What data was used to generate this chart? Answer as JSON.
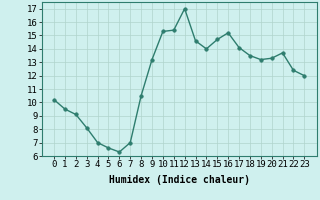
{
  "x": [
    0,
    1,
    2,
    3,
    4,
    5,
    6,
    7,
    8,
    9,
    10,
    11,
    12,
    13,
    14,
    15,
    16,
    17,
    18,
    19,
    20,
    21,
    22,
    23
  ],
  "y": [
    10.2,
    9.5,
    9.1,
    8.1,
    7.0,
    6.6,
    6.3,
    7.0,
    10.5,
    13.2,
    15.3,
    15.4,
    17.0,
    14.6,
    14.0,
    14.7,
    15.2,
    14.1,
    13.5,
    13.2,
    13.3,
    13.7,
    12.4,
    12.0
  ],
  "line_color": "#2e7d6e",
  "marker": "o",
  "markersize": 2.5,
  "linewidth": 1.0,
  "background_color": "#cff0ee",
  "grid_color": "#b0d4cc",
  "xlabel": "Humidex (Indice chaleur)",
  "ylim": [
    6,
    17.5
  ],
  "yticks": [
    6,
    7,
    8,
    9,
    10,
    11,
    12,
    13,
    14,
    15,
    16,
    17
  ],
  "xticks": [
    0,
    1,
    2,
    3,
    4,
    5,
    6,
    7,
    8,
    9,
    10,
    11,
    12,
    13,
    14,
    15,
    16,
    17,
    18,
    19,
    20,
    21,
    22,
    23
  ],
  "xlabel_fontsize": 7,
  "tick_fontsize": 6.5
}
